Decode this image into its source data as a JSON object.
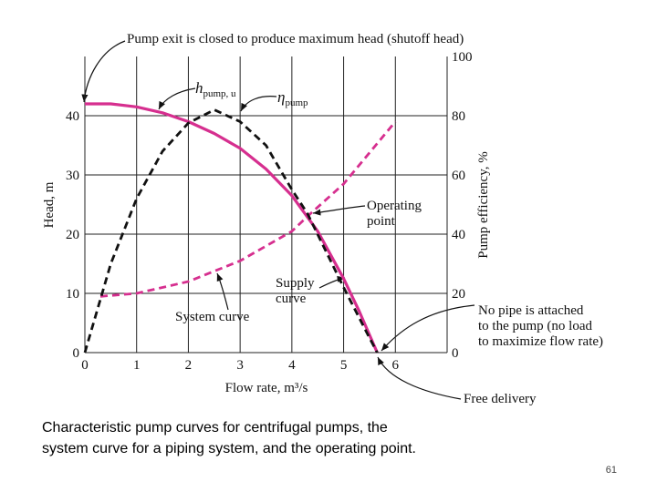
{
  "chart_data": {
    "type": "line",
    "annotations": [
      {
        "lines": [
          "Pump exit is closed to produce maximum head (shutoff head)"
        ]
      },
      {
        "lines": [
          "h"
        ],
        "sub": "pump, u"
      },
      {
        "lines": [
          "η"
        ],
        "sub": "pump"
      },
      {
        "lines": [
          "Operating",
          "point"
        ]
      },
      {
        "lines": [
          "Supply",
          "curve"
        ]
      },
      {
        "lines": [
          "System curve"
        ]
      },
      {
        "lines": [
          "No pipe is attached",
          "to the pump (no load",
          "to maximize flow rate)"
        ]
      },
      {
        "lines": [
          "Free delivery"
        ]
      }
    ],
    "xlabel": "Flow rate, m³/s",
    "ylabel": "Head, m",
    "y2label": "Pump efficiency, %",
    "xlim": [
      0,
      7
    ],
    "xticks": [
      0,
      1,
      2,
      3,
      4,
      5,
      6
    ],
    "ylim": [
      0,
      50
    ],
    "yticks": [
      0,
      10,
      20,
      30,
      40
    ],
    "y2lim": [
      0,
      100
    ],
    "y2ticks": [
      0,
      20,
      40,
      60,
      80,
      100
    ],
    "grid": true,
    "series": [
      {
        "name": "Supply curve",
        "color": "#d62f8f",
        "dashed": false,
        "x": [
          0,
          0.5,
          1,
          1.5,
          2,
          2.5,
          3,
          3.5,
          4,
          4.5,
          5,
          5.3,
          5.65
        ],
        "values": [
          42,
          42,
          41.5,
          40.5,
          39,
          37,
          34.5,
          31,
          26.5,
          20.5,
          12.5,
          7,
          0
        ]
      },
      {
        "name": "System curve",
        "color": "#d62f8f",
        "dashed": true,
        "x": [
          0.3,
          1,
          2,
          3,
          4,
          4.3,
          5,
          6
        ],
        "values": [
          9.5,
          10,
          12,
          15.5,
          20.5,
          23,
          28.5,
          39
        ]
      },
      {
        "name": "Pump efficiency",
        "color": "#111111",
        "dashed": true,
        "axis": "y2",
        "x": [
          0,
          0.5,
          1,
          1.5,
          2,
          2.5,
          3,
          3.5,
          4,
          4.3,
          5,
          5.5,
          5.65
        ],
        "values": [
          0,
          30,
          52,
          68,
          77.5,
          82,
          78,
          70,
          55,
          47,
          22,
          5,
          0
        ]
      }
    ]
  },
  "caption": [
    "Characteristic pump curves for centrifugal pumps, the",
    "system curve for a piping system, and the operating point."
  ],
  "page_number": "61"
}
